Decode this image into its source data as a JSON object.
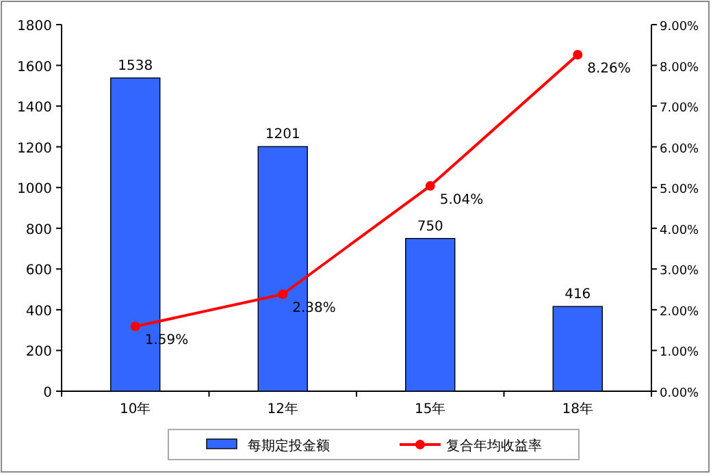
{
  "chart_data": {
    "type": "bar",
    "categories": [
      "10年",
      "12年",
      "15年",
      "18年"
    ],
    "series": [
      {
        "name": "每期定投金额",
        "color": "#3366ff",
        "values": [
          1538,
          1201,
          750,
          416
        ],
        "value_labels": [
          "1538",
          "1201",
          "750",
          "416"
        ]
      },
      {
        "name": "复合年均收益率",
        "type": "line",
        "axis": "y2",
        "color": "#ff0000",
        "marker": "circle",
        "values": [
          1.59,
          2.38,
          5.04,
          8.26
        ],
        "value_labels": [
          "1.59%",
          "2.38%",
          "5.04%",
          "8.26%"
        ]
      }
    ],
    "ylim": [
      0,
      1800
    ],
    "yticks": [
      0,
      200,
      400,
      600,
      800,
      1000,
      1200,
      1400,
      1600,
      1800
    ],
    "y2lim": [
      0,
      9
    ],
    "y2ticks": [
      {
        "value": 0,
        "label": "0.00%"
      },
      {
        "value": 1,
        "label": "1.00%"
      },
      {
        "value": 2,
        "label": "2.00%"
      },
      {
        "value": 3,
        "label": "3.00%"
      },
      {
        "value": 4,
        "label": "4.00%"
      },
      {
        "value": 5,
        "label": "5.00%"
      },
      {
        "value": 6,
        "label": "6.00%"
      },
      {
        "value": 7,
        "label": "7.00%"
      },
      {
        "value": 8,
        "label": "8.00%"
      },
      {
        "value": 9,
        "label": "9.00%"
      }
    ],
    "grid": false,
    "legend": "bottom"
  }
}
